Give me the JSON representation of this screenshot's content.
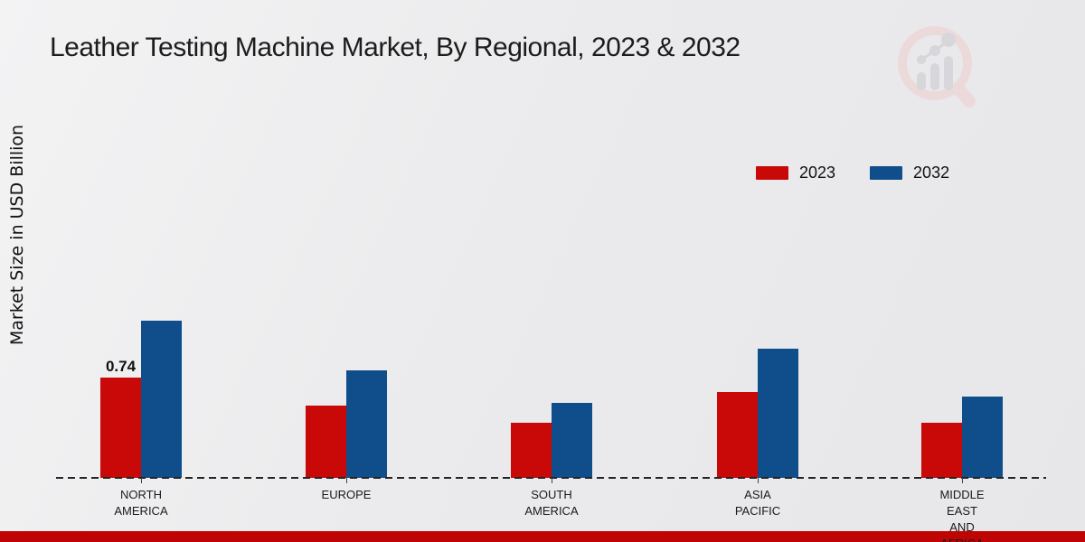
{
  "page": {
    "footer_color": "#bf0404"
  },
  "logo": {
    "name": "magnifier-bar-chart-logo",
    "circle_color": "#ecdada",
    "bars_color": "#d7d7db"
  },
  "chart_data": {
    "type": "bar",
    "title": "Leather Testing Machine Market, By Regional, 2023 & 2032",
    "ylabel": "Market Size in USD Billion",
    "unit": "USD Billion",
    "categories": [
      "NORTH AMERICA",
      "EUROPE",
      "SOUTH AMERICA",
      "ASIA PACIFIC",
      "MIDDLE EAST AND AFRICA"
    ],
    "category_label_lines": [
      [
        "NORTH",
        "AMERICA"
      ],
      [
        "EUROPE"
      ],
      [
        "SOUTH",
        "AMERICA"
      ],
      [
        "ASIA",
        "PACIFIC"
      ],
      [
        "MIDDLE",
        "EAST",
        "AND",
        "AFRICA"
      ]
    ],
    "series": [
      {
        "name": "2023",
        "color": "#c90808",
        "values": [
          0.74,
          0.53,
          0.41,
          0.63,
          0.41
        ]
      },
      {
        "name": "2032",
        "color": "#0f4e8a",
        "values": [
          1.16,
          0.79,
          0.55,
          0.95,
          0.6
        ]
      }
    ],
    "annotations": [
      {
        "series": "2023",
        "category": "NORTH AMERICA",
        "category_index": 0,
        "text": "0.74"
      }
    ],
    "ylim": [
      0,
      1.3
    ],
    "grid": false,
    "legend_position": "top-right",
    "baseline_style": "dashed",
    "axis_color": "#242424"
  }
}
